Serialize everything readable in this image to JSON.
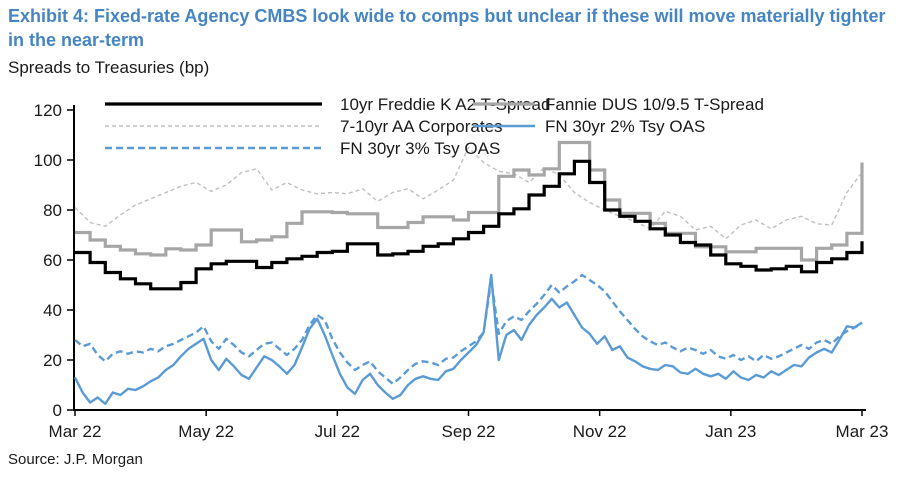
{
  "title": "Exhibit 4: Fixed-rate Agency CMBS look wide to comps but unclear if these will move materially tighter in the near-term",
  "subtitle": "Spreads to Treasuries (bp)",
  "source": "Source: J.P. Morgan",
  "colors": {
    "title_blue": "#4685c3",
    "black_series": "#000000",
    "gray_series": "#a6a6a6",
    "light_gray_dashed_series": "#bfbfbf",
    "blue_series": "#5b9bd5",
    "axis": "#000000",
    "text": "#1a1a1a"
  },
  "chart_data": {
    "type": "line",
    "title": "Exhibit 4: Fixed-rate Agency CMBS look wide to comps but unclear if these will move materially tighter in the near-term",
    "ylabel": "Spreads to Treasuries (bp)",
    "ylim": [
      0,
      120
    ],
    "yticks": [
      0,
      20,
      40,
      60,
      80,
      100,
      120
    ],
    "xticklabels": [
      "Mar 22",
      "May 22",
      "Jul 22",
      "Sep 22",
      "Nov 22",
      "Jan 23",
      "Mar 23"
    ],
    "grid": false,
    "legend_position": "top-inside-two-columns",
    "series": [
      {
        "name": "10yr Freddie K A2 T-Spread",
        "color": "#000000",
        "style": "solid",
        "dash": null,
        "width": 3.2,
        "step": true,
        "values": [
          63,
          59,
          55,
          52.5,
          50.5,
          48.5,
          48.5,
          51,
          56.5,
          58.5,
          59.5,
          59.5,
          57,
          59,
          60.5,
          61.5,
          63,
          63.5,
          66.5,
          66.5,
          62,
          62.5,
          63.5,
          65.5,
          66.5,
          68.5,
          71,
          73.5,
          78.5,
          80.5,
          86,
          89.5,
          94.5,
          99.5,
          91,
          80,
          77.5,
          75.5,
          72.5,
          70,
          67,
          66,
          62,
          58.5,
          57.5,
          56,
          56.5,
          57.5,
          55.3,
          59,
          60.5,
          63,
          67.5
        ]
      },
      {
        "name": "Fannie DUS 10/9.5 T-Spread",
        "color": "#a6a6a6",
        "style": "solid",
        "dash": null,
        "width": 3.2,
        "step": true,
        "values": [
          71,
          68,
          65.5,
          64,
          62.5,
          62,
          64.5,
          64,
          66,
          72,
          72,
          67.3,
          68,
          69.3,
          74.7,
          79.3,
          79.3,
          79,
          78.5,
          78.5,
          73,
          73,
          75,
          77.3,
          77.3,
          76,
          79,
          79,
          93.5,
          96,
          94,
          96.5,
          107,
          107,
          96,
          84,
          78.7,
          78.7,
          74.7,
          70.7,
          70.7,
          65.3,
          65.3,
          63.3,
          63.3,
          64.7,
          64.7,
          64.7,
          60,
          64.7,
          66,
          70.7,
          99
        ]
      },
      {
        "name": "7-10yr AA Corporates",
        "color": "#bfbfbf",
        "style": "dashed",
        "dash": "4 3",
        "width": 1.4,
        "step": false,
        "values": [
          81,
          75,
          73.5,
          78,
          82,
          84.5,
          87,
          89.5,
          91,
          87.5,
          90,
          95,
          96.5,
          88,
          91,
          88,
          86.5,
          87,
          86.5,
          88.5,
          83.5,
          87,
          88.5,
          84.5,
          88,
          92,
          105,
          99,
          95.5,
          94.5,
          91,
          97,
          94,
          87,
          83,
          80,
          77.5,
          75.5,
          72.5,
          79.5,
          77.5,
          72,
          73.5,
          68.5,
          74,
          76,
          72.5,
          76,
          77.5,
          74.5,
          74,
          87,
          95
        ]
      },
      {
        "name": "FN 30yr 3% Tsy OAS",
        "color": "#5b9bd5",
        "style": "dashed",
        "dash": "7 4",
        "width": 2.4,
        "step": false,
        "values": [
          28,
          25.5,
          26.5,
          22,
          19.5,
          22.5,
          23.5,
          22.5,
          23.5,
          23,
          24.5,
          23.5,
          25.5,
          26.5,
          28,
          29.5,
          31,
          33.5,
          27.5,
          24.5,
          28.5,
          26,
          23,
          21.5,
          24,
          26.5,
          27,
          24.5,
          22,
          24.5,
          28,
          34,
          38,
          36,
          28.5,
          23,
          19,
          16,
          18,
          19.5,
          15.5,
          13,
          10.5,
          13,
          16,
          18.5,
          19.5,
          19,
          18,
          20.5,
          21,
          23.5,
          25.5,
          27.5,
          31,
          52,
          30.5,
          35.5,
          37.5,
          36,
          39.5,
          42.5,
          46,
          50,
          47,
          49.5,
          51.5,
          54,
          52,
          50,
          47.5,
          43.5,
          39.5,
          36,
          32.5,
          29.5,
          27.5,
          26,
          27,
          25,
          23.5,
          25,
          24,
          22.5,
          24,
          21.5,
          20.5,
          22,
          20,
          21.5,
          19.5,
          22,
          20.5,
          21.5,
          23,
          24.5,
          26,
          24.5,
          27,
          28,
          26.5,
          29.5,
          31.5,
          33,
          34.5
        ]
      },
      {
        "name": "FN 30yr 2% Tsy OAS",
        "color": "#5b9bd5",
        "style": "solid",
        "dash": null,
        "width": 2.4,
        "step": false,
        "values": [
          13,
          7,
          3,
          5,
          2.5,
          7,
          6,
          8.5,
          8,
          9.5,
          11.5,
          13,
          16,
          18,
          21.5,
          24.5,
          26.5,
          28.5,
          20,
          16,
          20.5,
          17.5,
          14,
          12.5,
          17,
          21.5,
          20,
          17.5,
          14.5,
          18,
          25,
          32.5,
          36.5,
          30,
          22,
          14.5,
          9,
          6.5,
          12,
          14.5,
          10,
          7,
          4.5,
          6,
          10,
          12.5,
          13.5,
          12.5,
          12,
          15.5,
          16.5,
          20,
          23,
          26,
          31,
          54,
          20,
          30,
          32,
          28,
          34,
          38,
          41,
          44.5,
          41,
          43,
          38,
          33,
          30.5,
          26.5,
          29.5,
          24,
          25.5,
          21,
          19.5,
          17.5,
          16.5,
          16,
          18,
          17.5,
          15,
          14.5,
          16.5,
          14.5,
          13.5,
          14.5,
          12.5,
          15.5,
          13,
          12,
          14,
          13,
          15.5,
          14,
          16,
          18,
          17.5,
          21,
          23,
          24.5,
          23,
          28,
          33.5,
          33,
          35
        ]
      }
    ],
    "legend": [
      {
        "label": "10yr Freddie K A2 T-Spread",
        "series": 0,
        "col": 1,
        "row": 1
      },
      {
        "label": "Fannie DUS 10/9.5 T-Spread",
        "series": 1,
        "col": 2,
        "row": 1
      },
      {
        "label": "7-10yr AA Corporates",
        "series": 2,
        "col": 1,
        "row": 2
      },
      {
        "label": "FN 30yr 2% Tsy OAS",
        "series": 4,
        "col": 2,
        "row": 2
      },
      {
        "label": "FN 30yr 3% Tsy OAS",
        "series": 3,
        "col": 1,
        "row": 3
      }
    ]
  }
}
